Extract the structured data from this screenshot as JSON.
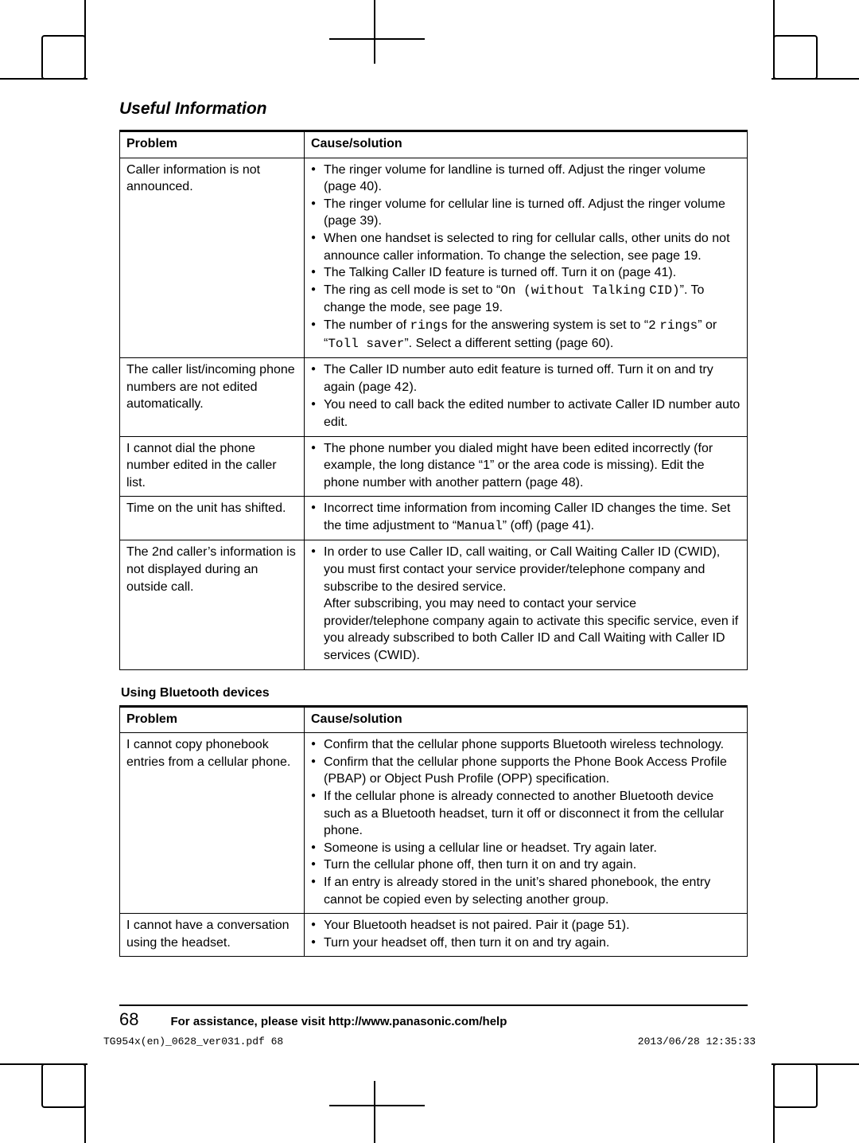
{
  "heading": "Useful Information",
  "table1": {
    "header_problem": "Problem",
    "header_solution": "Cause/solution",
    "rows": [
      {
        "problem": "Caller information is not announced.",
        "solutions": [
          "The ringer volume for landline is turned off. Adjust the ringer volume (page 40).",
          "The ringer volume for cellular line is turned off. Adjust the ringer volume (page 39).",
          "When one handset is selected to ring for cellular calls, other units do not announce caller information. To change the selection, see page 19.",
          "The Talking Caller ID feature is turned off. Turn it on (page 41).",
          "The ring as cell mode is set to “On (without Talking CID)”. To change the mode, see page 19.",
          "The number of rings for the answering system is set to “2 rings” or “Toll saver”. Select a different setting (page 60)."
        ]
      },
      {
        "problem": "The caller list/incoming phone numbers are not edited automatically.",
        "solutions": [
          "The Caller ID number auto edit feature is turned off. Turn it on and try again (page 42).",
          "You need to call back the edited number to activate Caller ID number auto edit."
        ]
      },
      {
        "problem": "I cannot dial the phone number edited in the caller list.",
        "solutions": [
          "The phone number you dialed might have been edited incorrectly (for example, the long distance “1” or the area code is missing). Edit the phone number with another pattern (page 48)."
        ]
      },
      {
        "problem": "Time on the unit has shifted.",
        "solutions": [
          "Incorrect time information from incoming Caller ID changes the time. Set the time adjustment to “Manual” (off) (page 41)."
        ]
      },
      {
        "problem": "The 2nd caller’s information is not displayed during an outside call.",
        "solutions": [
          "In order to use Caller ID, call waiting, or Call Waiting Caller ID (CWID), you must first contact your service provider/telephone company and subscribe to the desired service.\nAfter subscribing, you may need to contact your service provider/telephone company again to activate this specific service, even if you already subscribed to both Caller ID and Call Waiting with Caller ID services (CWID)."
        ]
      }
    ]
  },
  "subhead": "Using Bluetooth devices",
  "table2": {
    "header_problem": "Problem",
    "header_solution": "Cause/solution",
    "rows": [
      {
        "problem": "I cannot copy phonebook entries from a cellular phone.",
        "solutions": [
          "Confirm that the cellular phone supports Bluetooth wireless technology.",
          "Confirm that the cellular phone supports the Phone Book Access Profile (PBAP) or Object Push Profile (OPP) specification.",
          "If the cellular phone is already connected to another Bluetooth device such as a Bluetooth headset, turn it off or disconnect it from the cellular phone.",
          "Someone is using a cellular line or headset. Try again later.",
          "Turn the cellular phone off, then turn it on and try again.",
          "If an entry is already stored in the unit’s shared phonebook, the entry cannot be copied even by selecting another group."
        ]
      },
      {
        "problem": "I cannot have a conversation using the headset.",
        "solutions": [
          "Your Bluetooth headset is not paired. Pair it (page 51).",
          "Turn your headset off, then turn it on and try again."
        ]
      }
    ]
  },
  "footer": {
    "page_number": "68",
    "assist_text": "For assistance, please visit http://www.panasonic.com/help"
  },
  "print": {
    "file": "TG954x(en)_0628_ver031.pdf   68",
    "timestamp": "2013/06/28   12:35:33"
  },
  "mono_phrases": [
    "On (without Talking",
    "CID)",
    "2",
    "rings",
    "Toll saver",
    "Manual"
  ]
}
